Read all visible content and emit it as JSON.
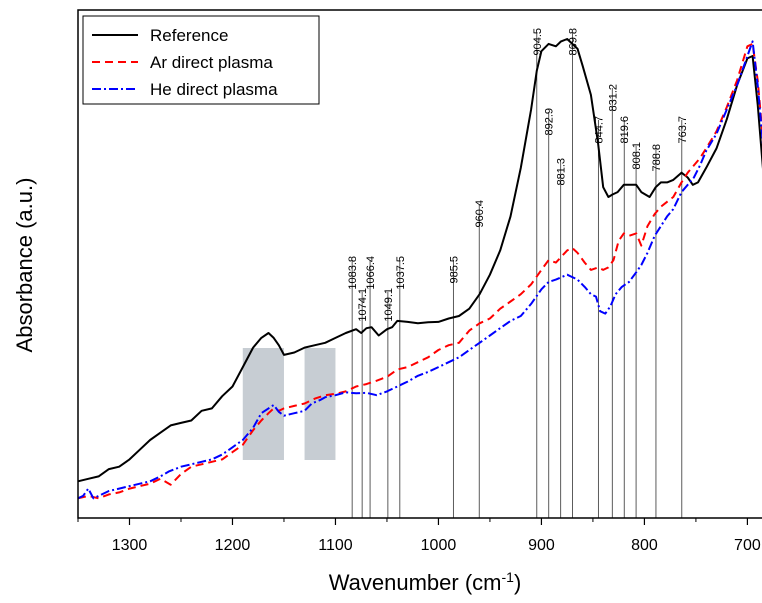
{
  "chart_data": {
    "type": "line",
    "xlabel": "Wavenumber (cm",
    "xlabel_sup": "-1",
    "xlabel_close": ")",
    "ylabel": "Absorbance (a.u.)",
    "xlim": [
      1350,
      680
    ],
    "ylim": [
      0,
      1
    ],
    "x_reversed": true,
    "y_ticks_shown": false,
    "grid": false,
    "legend_position": "top-left",
    "x_ticks": [
      1300,
      1200,
      1100,
      1000,
      900,
      800,
      700
    ],
    "series": [
      {
        "name": "Reference",
        "color": "#000000",
        "dash": "solid",
        "points": [
          [
            1350,
            0.055
          ],
          [
            1340,
            0.06
          ],
          [
            1330,
            0.065
          ],
          [
            1320,
            0.08
          ],
          [
            1310,
            0.085
          ],
          [
            1300,
            0.1
          ],
          [
            1290,
            0.12
          ],
          [
            1280,
            0.14
          ],
          [
            1270,
            0.155
          ],
          [
            1260,
            0.17
          ],
          [
            1250,
            0.175
          ],
          [
            1240,
            0.18
          ],
          [
            1230,
            0.2
          ],
          [
            1220,
            0.205
          ],
          [
            1210,
            0.23
          ],
          [
            1200,
            0.25
          ],
          [
            1190,
            0.29
          ],
          [
            1180,
            0.33
          ],
          [
            1172,
            0.35
          ],
          [
            1165,
            0.36
          ],
          [
            1160,
            0.35
          ],
          [
            1155,
            0.335
          ],
          [
            1150,
            0.315
          ],
          [
            1140,
            0.32
          ],
          [
            1130,
            0.33
          ],
          [
            1120,
            0.335
          ],
          [
            1110,
            0.34
          ],
          [
            1100,
            0.35
          ],
          [
            1090,
            0.36
          ],
          [
            1080,
            0.368
          ],
          [
            1075,
            0.36
          ],
          [
            1070,
            0.37
          ],
          [
            1065,
            0.372
          ],
          [
            1058,
            0.355
          ],
          [
            1050,
            0.368
          ],
          [
            1045,
            0.372
          ],
          [
            1040,
            0.385
          ],
          [
            1030,
            0.383
          ],
          [
            1020,
            0.38
          ],
          [
            1010,
            0.382
          ],
          [
            1000,
            0.383
          ],
          [
            990,
            0.39
          ],
          [
            980,
            0.395
          ],
          [
            970,
            0.41
          ],
          [
            960,
            0.44
          ],
          [
            950,
            0.48
          ],
          [
            940,
            0.53
          ],
          [
            930,
            0.6
          ],
          [
            920,
            0.7
          ],
          [
            910,
            0.82
          ],
          [
            904.5,
            0.9
          ],
          [
            900,
            0.94
          ],
          [
            893,
            0.955
          ],
          [
            886,
            0.95
          ],
          [
            881,
            0.96
          ],
          [
            875,
            0.965
          ],
          [
            870,
            0.955
          ],
          [
            865,
            0.945
          ],
          [
            860,
            0.91
          ],
          [
            852,
            0.85
          ],
          [
            845,
            0.75
          ],
          [
            840,
            0.66
          ],
          [
            835,
            0.64
          ],
          [
            831,
            0.645
          ],
          [
            826,
            0.65
          ],
          [
            820,
            0.665
          ],
          [
            815,
            0.665
          ],
          [
            808,
            0.665
          ],
          [
            803,
            0.65
          ],
          [
            795,
            0.64
          ],
          [
            789,
            0.66
          ],
          [
            784,
            0.67
          ],
          [
            778,
            0.67
          ],
          [
            772,
            0.675
          ],
          [
            764,
            0.69
          ],
          [
            758,
            0.68
          ],
          [
            753,
            0.665
          ],
          [
            748,
            0.67
          ],
          [
            740,
            0.7
          ],
          [
            730,
            0.74
          ],
          [
            720,
            0.8
          ],
          [
            710,
            0.87
          ],
          [
            700,
            0.925
          ],
          [
            695,
            0.93
          ],
          [
            690,
            0.83
          ],
          [
            685,
            0.7
          ],
          [
            680,
            0.58
          ]
        ]
      },
      {
        "name": "Ar direct plasma",
        "color": "#ff0000",
        "dash": "dashed",
        "points": [
          [
            1350,
            0.02
          ],
          [
            1340,
            0.025
          ],
          [
            1330,
            0.02
          ],
          [
            1320,
            0.028
          ],
          [
            1310,
            0.032
          ],
          [
            1300,
            0.04
          ],
          [
            1290,
            0.045
          ],
          [
            1280,
            0.05
          ],
          [
            1270,
            0.06
          ],
          [
            1260,
            0.048
          ],
          [
            1250,
            0.07
          ],
          [
            1240,
            0.085
          ],
          [
            1230,
            0.09
          ],
          [
            1220,
            0.095
          ],
          [
            1210,
            0.1
          ],
          [
            1200,
            0.115
          ],
          [
            1190,
            0.13
          ],
          [
            1180,
            0.16
          ],
          [
            1172,
            0.18
          ],
          [
            1165,
            0.195
          ],
          [
            1160,
            0.205
          ],
          [
            1155,
            0.2
          ],
          [
            1150,
            0.205
          ],
          [
            1140,
            0.21
          ],
          [
            1130,
            0.215
          ],
          [
            1120,
            0.225
          ],
          [
            1110,
            0.232
          ],
          [
            1100,
            0.235
          ],
          [
            1090,
            0.24
          ],
          [
            1080,
            0.25
          ],
          [
            1070,
            0.255
          ],
          [
            1060,
            0.262
          ],
          [
            1050,
            0.27
          ],
          [
            1040,
            0.285
          ],
          [
            1030,
            0.29
          ],
          [
            1020,
            0.3
          ],
          [
            1010,
            0.31
          ],
          [
            1000,
            0.325
          ],
          [
            990,
            0.335
          ],
          [
            980,
            0.34
          ],
          [
            970,
            0.365
          ],
          [
            960,
            0.38
          ],
          [
            950,
            0.39
          ],
          [
            940,
            0.41
          ],
          [
            930,
            0.425
          ],
          [
            920,
            0.44
          ],
          [
            910,
            0.46
          ],
          [
            900,
            0.49
          ],
          [
            893,
            0.51
          ],
          [
            886,
            0.505
          ],
          [
            875,
            0.53
          ],
          [
            870,
            0.535
          ],
          [
            865,
            0.525
          ],
          [
            858,
            0.505
          ],
          [
            852,
            0.49
          ],
          [
            845,
            0.495
          ],
          [
            840,
            0.49
          ],
          [
            835,
            0.495
          ],
          [
            830,
            0.51
          ],
          [
            825,
            0.55
          ],
          [
            820,
            0.565
          ],
          [
            815,
            0.56
          ],
          [
            808,
            0.565
          ],
          [
            803,
            0.54
          ],
          [
            797,
            0.58
          ],
          [
            790,
            0.605
          ],
          [
            784,
            0.62
          ],
          [
            778,
            0.63
          ],
          [
            772,
            0.64
          ],
          [
            764,
            0.67
          ],
          [
            758,
            0.69
          ],
          [
            752,
            0.705
          ],
          [
            746,
            0.72
          ],
          [
            740,
            0.74
          ],
          [
            730,
            0.775
          ],
          [
            720,
            0.825
          ],
          [
            710,
            0.88
          ],
          [
            700,
            0.95
          ],
          [
            695,
            0.955
          ],
          [
            690,
            0.88
          ],
          [
            685,
            0.76
          ],
          [
            680,
            0.64
          ]
        ]
      },
      {
        "name": "He direct plasma",
        "color": "#0000ff",
        "dash": "dashdot",
        "points": [
          [
            1350,
            0.02
          ],
          [
            1345,
            0.025
          ],
          [
            1340,
            0.04
          ],
          [
            1335,
            0.02
          ],
          [
            1330,
            0.025
          ],
          [
            1320,
            0.035
          ],
          [
            1310,
            0.04
          ],
          [
            1300,
            0.045
          ],
          [
            1290,
            0.05
          ],
          [
            1280,
            0.055
          ],
          [
            1270,
            0.065
          ],
          [
            1262,
            0.075
          ],
          [
            1250,
            0.085
          ],
          [
            1240,
            0.09
          ],
          [
            1230,
            0.095
          ],
          [
            1220,
            0.1
          ],
          [
            1210,
            0.11
          ],
          [
            1200,
            0.125
          ],
          [
            1190,
            0.14
          ],
          [
            1180,
            0.165
          ],
          [
            1172,
            0.195
          ],
          [
            1165,
            0.205
          ],
          [
            1160,
            0.212
          ],
          [
            1155,
            0.198
          ],
          [
            1150,
            0.19
          ],
          [
            1140,
            0.195
          ],
          [
            1130,
            0.2
          ],
          [
            1123,
            0.215
          ],
          [
            1115,
            0.222
          ],
          [
            1110,
            0.228
          ],
          [
            1100,
            0.232
          ],
          [
            1090,
            0.238
          ],
          [
            1080,
            0.236
          ],
          [
            1070,
            0.237
          ],
          [
            1060,
            0.232
          ],
          [
            1050,
            0.24
          ],
          [
            1040,
            0.25
          ],
          [
            1030,
            0.26
          ],
          [
            1020,
            0.272
          ],
          [
            1010,
            0.28
          ],
          [
            1000,
            0.29
          ],
          [
            990,
            0.3
          ],
          [
            980,
            0.31
          ],
          [
            970,
            0.325
          ],
          [
            960,
            0.34
          ],
          [
            950,
            0.355
          ],
          [
            940,
            0.37
          ],
          [
            930,
            0.385
          ],
          [
            920,
            0.395
          ],
          [
            910,
            0.42
          ],
          [
            900,
            0.45
          ],
          [
            893,
            0.465
          ],
          [
            886,
            0.47
          ],
          [
            875,
            0.48
          ],
          [
            870,
            0.475
          ],
          [
            865,
            0.47
          ],
          [
            858,
            0.455
          ],
          [
            852,
            0.44
          ],
          [
            847,
            0.435
          ],
          [
            843,
            0.405
          ],
          [
            838,
            0.4
          ],
          [
            833,
            0.415
          ],
          [
            828,
            0.44
          ],
          [
            822,
            0.455
          ],
          [
            815,
            0.465
          ],
          [
            808,
            0.485
          ],
          [
            803,
            0.5
          ],
          [
            797,
            0.525
          ],
          [
            790,
            0.56
          ],
          [
            784,
            0.58
          ],
          [
            778,
            0.6
          ],
          [
            772,
            0.615
          ],
          [
            764,
            0.65
          ],
          [
            758,
            0.665
          ],
          [
            752,
            0.68
          ],
          [
            746,
            0.705
          ],
          [
            740,
            0.735
          ],
          [
            730,
            0.77
          ],
          [
            720,
            0.82
          ],
          [
            710,
            0.87
          ],
          [
            700,
            0.93
          ],
          [
            695,
            0.96
          ],
          [
            690,
            0.87
          ],
          [
            685,
            0.75
          ],
          [
            680,
            0.62
          ]
        ]
      }
    ],
    "peak_labels": [
      "1083.8",
      "1074.1",
      "1066.4",
      "1049.1",
      "1037.5",
      "985.5",
      "960.4",
      "904.5",
      "892.9",
      "881.3",
      "869.8",
      "844.7",
      "831.2",
      "819.6",
      "808.1",
      "788.8",
      "763.7"
    ],
    "peak_values": [
      1083.8,
      1074.1,
      1066.4,
      1049.1,
      1037.5,
      985.5,
      960.4,
      904.5,
      892.9,
      881.3,
      869.8,
      844.7,
      831.2,
      819.6,
      808.1,
      788.8,
      763.7
    ],
    "shaded_regions": [
      [
        1190,
        1150
      ],
      [
        1130,
        1100
      ]
    ]
  }
}
